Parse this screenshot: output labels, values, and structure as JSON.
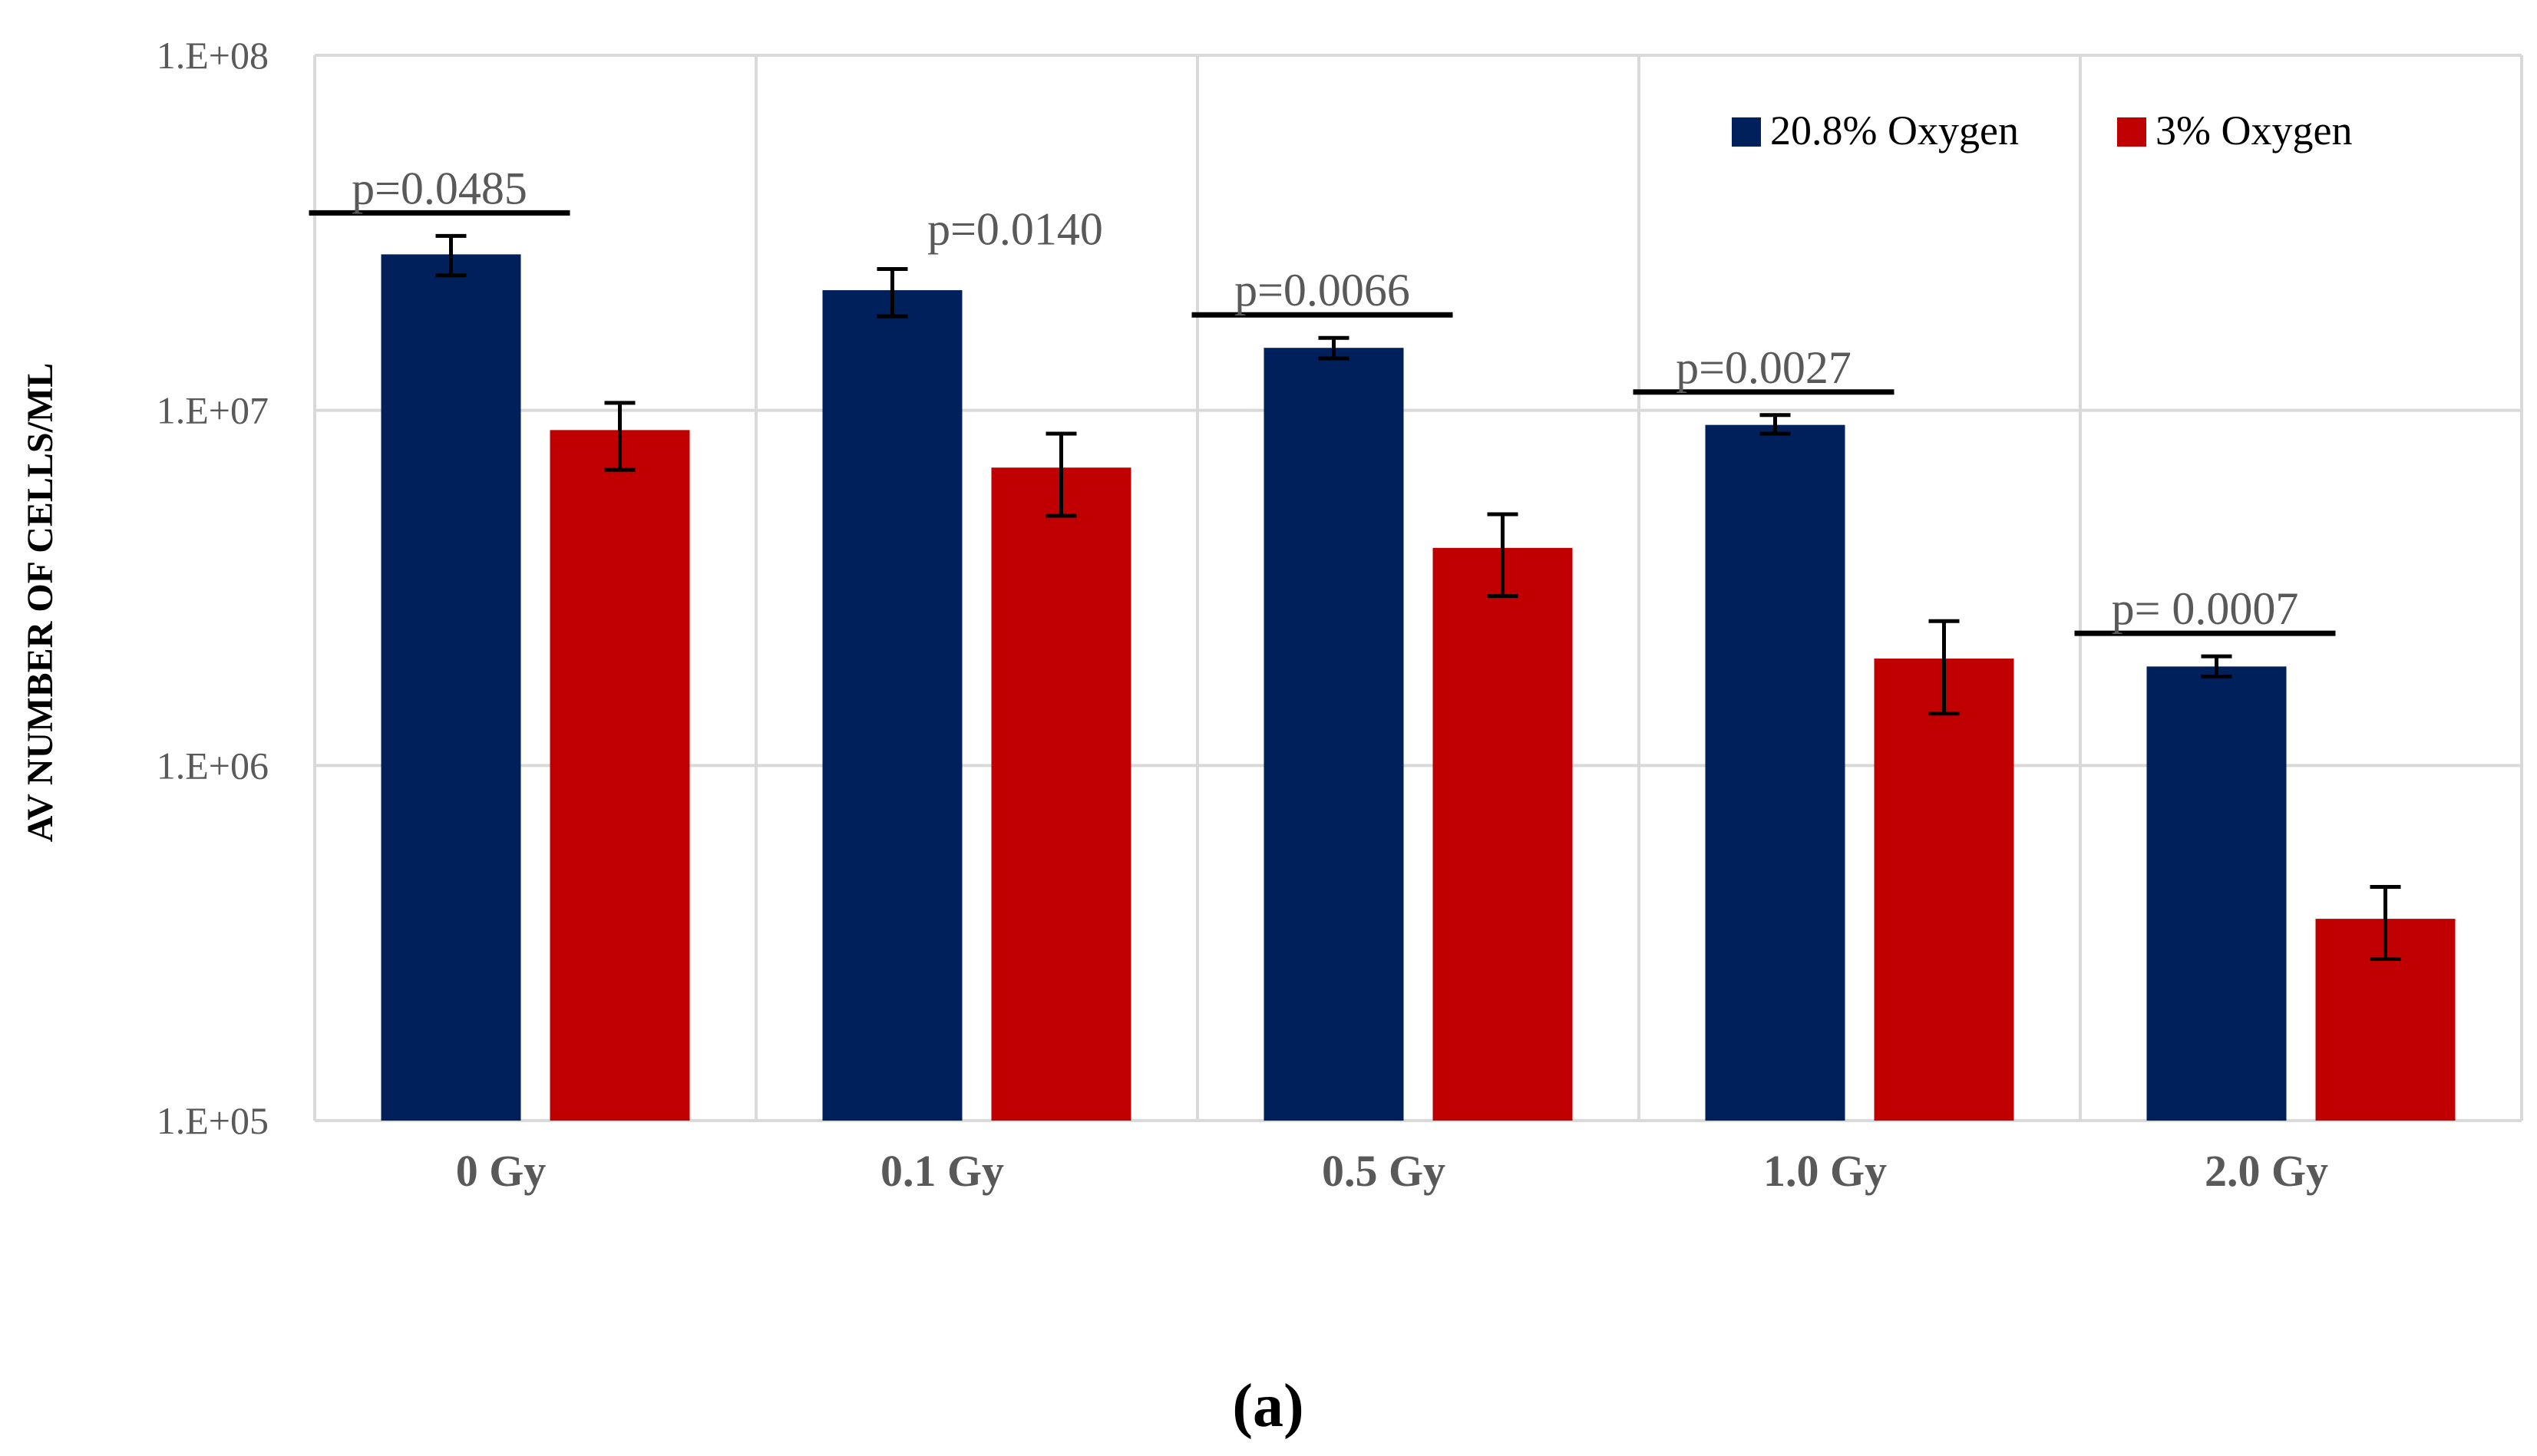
{
  "chart_data": {
    "type": "bar",
    "scale": "log",
    "title": "",
    "xlabel": "",
    "ylabel": "AV NUMBER OF CELLS/ML",
    "ylim": [
      100000,
      100000000
    ],
    "y_ticks": [
      {
        "value": 100000,
        "label": "1.E+05"
      },
      {
        "value": 1000000,
        "label": "1.E+06"
      },
      {
        "value": 10000000,
        "label": "1.E+07"
      },
      {
        "value": 100000000,
        "label": "1.E+08"
      }
    ],
    "categories": [
      "0 Gy",
      "0.1 Gy",
      "0.5 Gy",
      "1.0 Gy",
      "2.0 Gy"
    ],
    "series": [
      {
        "name": "20.8% Oxygen",
        "color": "#00205b",
        "values": [
          27500000,
          21800000,
          15000000,
          9100000,
          1900000
        ],
        "err_low": [
          24000000,
          18400000,
          14000000,
          8600000,
          1780000
        ],
        "err_high": [
          31000000,
          25000000,
          16000000,
          9700000,
          2030000
        ]
      },
      {
        "name": "3% Oxygen",
        "color": "#c00000",
        "values": [
          8800000,
          6900000,
          4100000,
          2000000,
          370000
        ],
        "err_low": [
          6800000,
          5050000,
          3000000,
          1400000,
          285000
        ],
        "err_high": [
          10500000,
          8600000,
          5100000,
          2550000,
          455000
        ]
      }
    ],
    "annotations": [
      "p=0.0485",
      "p=0.0140",
      "p=0.0066",
      "p=0.0027",
      "p= 0.0007"
    ],
    "annotation_bar_shown": [
      true,
      false,
      true,
      true,
      true
    ],
    "legend_position": "top-right",
    "grid": true,
    "panel_label": "(a)"
  }
}
